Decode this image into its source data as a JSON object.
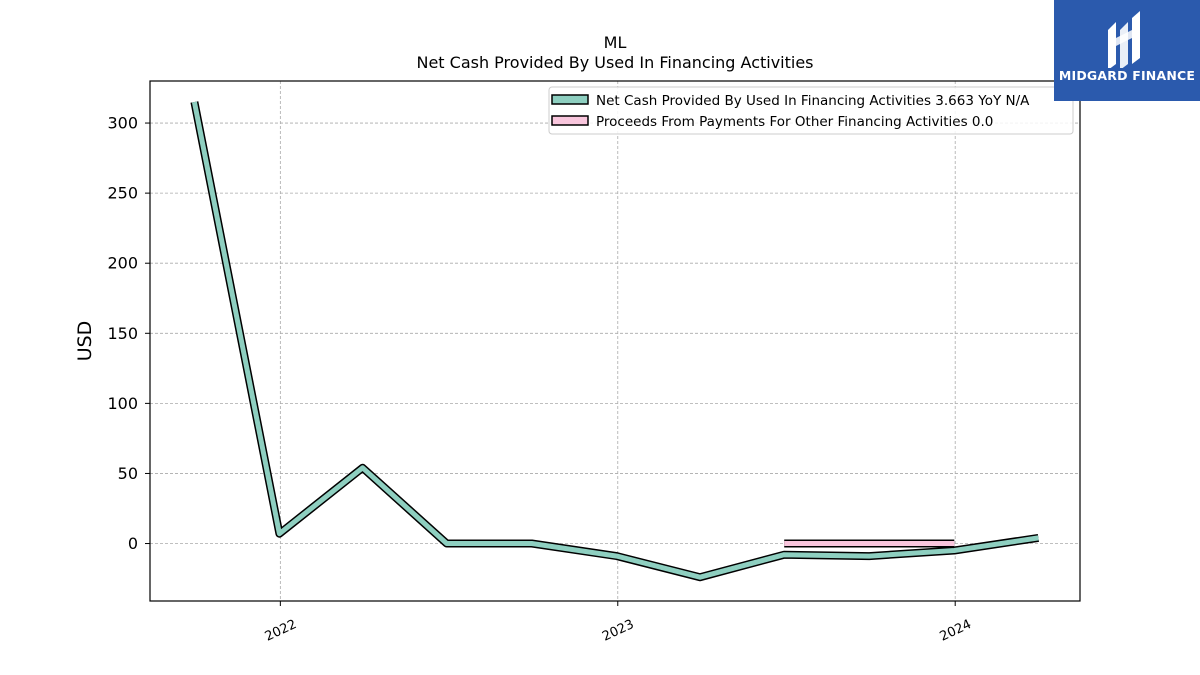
{
  "chart_data": {
    "type": "line",
    "title": "ML",
    "subtitle": "Net Cash Provided By Used In Financing Activities",
    "ylabel": "USD",
    "xlabel": "",
    "ylim": [
      -41,
      330
    ],
    "xlim": [
      "2021-08-13",
      "2024-05-15"
    ],
    "yticks": [
      0,
      50,
      100,
      150,
      200,
      250,
      300
    ],
    "xticks": [
      {
        "date": "2022-01-01",
        "label": "2022"
      },
      {
        "date": "2023-01-01",
        "label": "2023"
      },
      {
        "date": "2024-01-01",
        "label": "2024"
      }
    ],
    "grid": true,
    "legend_position": "top-right",
    "series": [
      {
        "name": "Net Cash Provided By Used In Financing Activities",
        "legend_label": "Net Cash Provided By Used In Financing Activities  3.663 YoY N/A",
        "color": "#8ecfc0",
        "points": [
          {
            "x": "2021-09-30",
            "y": 315
          },
          {
            "x": "2021-12-31",
            "y": 7
          },
          {
            "x": "2022-03-31",
            "y": 54
          },
          {
            "x": "2022-06-30",
            "y": 0
          },
          {
            "x": "2022-09-30",
            "y": 0
          },
          {
            "x": "2022-12-31",
            "y": -9
          },
          {
            "x": "2023-03-31",
            "y": -24
          },
          {
            "x": "2023-06-30",
            "y": -8
          },
          {
            "x": "2023-09-30",
            "y": -9
          },
          {
            "x": "2023-12-31",
            "y": -5
          },
          {
            "x": "2024-03-31",
            "y": 4
          }
        ]
      },
      {
        "name": "Proceeds From Payments For Other Financing Activities",
        "legend_label": "Proceeds From Payments For Other Financing Activities  0.0",
        "color": "#f9c6dd",
        "points": [
          {
            "x": "2023-06-30",
            "y": 0
          },
          {
            "x": "2023-09-30",
            "y": 0
          },
          {
            "x": "2023-12-31",
            "y": 0
          }
        ]
      }
    ]
  },
  "logo": {
    "text": "MIDGARD FINANCE",
    "color": "#2b5aad"
  }
}
